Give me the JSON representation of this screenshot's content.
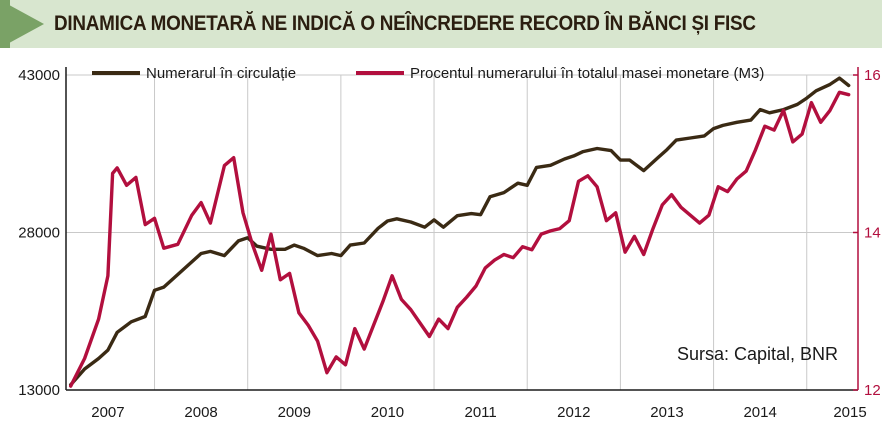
{
  "title": "DINAMICA MONETARĂ NE INDICĂ O NEÎNCREDERE RECORD ÎN BĂNCI ȘI FISC",
  "source": "Sursa: Capital, BNR",
  "colors": {
    "cash": "#3a2a14",
    "percent": "#b20f3e",
    "title_band": "#d8e6cf",
    "title_arrow": "#7aa266",
    "grid": "#c9c9c9"
  },
  "chart_data": {
    "type": "line",
    "title": "DINAMICA MONETARĂ NE INDICĂ O NEÎNCREDERE RECORD ÎN BĂNCI ȘI FISC",
    "xlabel": "",
    "ylabel": "",
    "x_ticks": [
      "2007",
      "2008",
      "2009",
      "2010",
      "2011",
      "2012",
      "2013",
      "2014",
      "2015"
    ],
    "y_left": {
      "lim": [
        13000,
        43000
      ],
      "ticks": [
        "13000",
        "28000",
        "43000"
      ]
    },
    "y_right": {
      "lim": [
        12,
        16
      ],
      "ticks": [
        "12",
        "14",
        "16"
      ]
    },
    "grid": true,
    "legend_position": "top",
    "series": [
      {
        "name": "Numerarul în circulație",
        "axis": "left",
        "x": [
          2006.6,
          2006.75,
          2006.9,
          2007.0,
          2007.1,
          2007.25,
          2007.4,
          2007.5,
          2007.6,
          2007.75,
          2007.9,
          2008.0,
          2008.1,
          2008.25,
          2008.4,
          2008.5,
          2008.6,
          2008.75,
          2008.9,
          2009.0,
          2009.1,
          2009.25,
          2009.4,
          2009.5,
          2009.6,
          2009.75,
          2009.9,
          2010.0,
          2010.1,
          2010.25,
          2010.4,
          2010.5,
          2010.6,
          2010.75,
          2010.9,
          2011.0,
          2011.1,
          2011.25,
          2011.4,
          2011.5,
          2011.6,
          2011.75,
          2011.9,
          2012.0,
          2012.1,
          2012.25,
          2012.4,
          2012.5,
          2012.6,
          2012.75,
          2012.9,
          2013.0,
          2013.1,
          2013.25,
          2013.4,
          2013.5,
          2013.6,
          2013.75,
          2013.9,
          2014.0,
          2014.1,
          2014.25,
          2014.4,
          2014.5,
          2014.6,
          2014.75,
          2014.85,
          2014.95
        ],
        "values": [
          13500,
          15000,
          16000,
          16800,
          18500,
          19500,
          20000,
          22500,
          22800,
          24000,
          25200,
          26000,
          26200,
          25800,
          27200,
          27500,
          26700,
          26400,
          26400,
          26800,
          26500,
          25800,
          26000,
          25800,
          26800,
          27000,
          28400,
          29100,
          29300,
          29000,
          28500,
          29200,
          28500,
          29600,
          29800,
          29700,
          31400,
          31800,
          32700,
          32500,
          34200,
          34400,
          35000,
          35300,
          35700,
          36000,
          35800,
          34900,
          34900,
          33900,
          35100,
          35900,
          36800,
          37000,
          37200,
          37900,
          38200,
          38500,
          38700,
          39700,
          39400,
          39700,
          40200,
          40800,
          41500,
          42100,
          42700,
          42000
        ]
      },
      {
        "name": "Procentul numerarului în totalul masei monetare (M3)",
        "axis": "right",
        "x": [
          2006.6,
          2006.75,
          2006.9,
          2007.0,
          2007.05,
          2007.1,
          2007.2,
          2007.3,
          2007.4,
          2007.5,
          2007.6,
          2007.75,
          2007.9,
          2008.0,
          2008.1,
          2008.25,
          2008.35,
          2008.45,
          2008.55,
          2008.65,
          2008.75,
          2008.85,
          2008.95,
          2009.05,
          2009.15,
          2009.25,
          2009.35,
          2009.45,
          2009.55,
          2009.65,
          2009.75,
          2009.85,
          2009.95,
          2010.05,
          2010.15,
          2010.25,
          2010.35,
          2010.45,
          2010.55,
          2010.65,
          2010.75,
          2010.85,
          2010.95,
          2011.05,
          2011.15,
          2011.25,
          2011.35,
          2011.45,
          2011.55,
          2011.65,
          2011.75,
          2011.85,
          2011.95,
          2012.05,
          2012.15,
          2012.25,
          2012.35,
          2012.45,
          2012.55,
          2012.65,
          2012.75,
          2012.85,
          2012.95,
          2013.05,
          2013.15,
          2013.25,
          2013.35,
          2013.45,
          2013.55,
          2013.65,
          2013.75,
          2013.85,
          2013.95,
          2014.05,
          2014.15,
          2014.25,
          2014.35,
          2014.45,
          2014.55,
          2014.65,
          2014.75,
          2014.85,
          2014.95
        ],
        "values": [
          12.05,
          12.4,
          12.9,
          13.45,
          14.75,
          14.82,
          14.6,
          14.7,
          14.1,
          14.18,
          13.8,
          13.85,
          14.22,
          14.38,
          14.12,
          14.85,
          14.95,
          14.25,
          13.85,
          13.52,
          13.98,
          13.4,
          13.48,
          12.98,
          12.82,
          12.62,
          12.22,
          12.42,
          12.32,
          12.78,
          12.52,
          12.82,
          13.12,
          13.45,
          13.15,
          13.02,
          12.85,
          12.68,
          12.9,
          12.78,
          13.05,
          13.18,
          13.32,
          13.55,
          13.65,
          13.72,
          13.68,
          13.82,
          13.78,
          13.98,
          14.02,
          14.05,
          14.15,
          14.65,
          14.72,
          14.58,
          14.15,
          14.25,
          13.75,
          13.95,
          13.72,
          14.05,
          14.35,
          14.48,
          14.32,
          14.22,
          14.12,
          14.22,
          14.58,
          14.52,
          14.68,
          14.78,
          15.05,
          15.35,
          15.3,
          15.55,
          15.15,
          15.25,
          15.65,
          15.4,
          15.55,
          15.78,
          15.75
        ]
      }
    ]
  }
}
